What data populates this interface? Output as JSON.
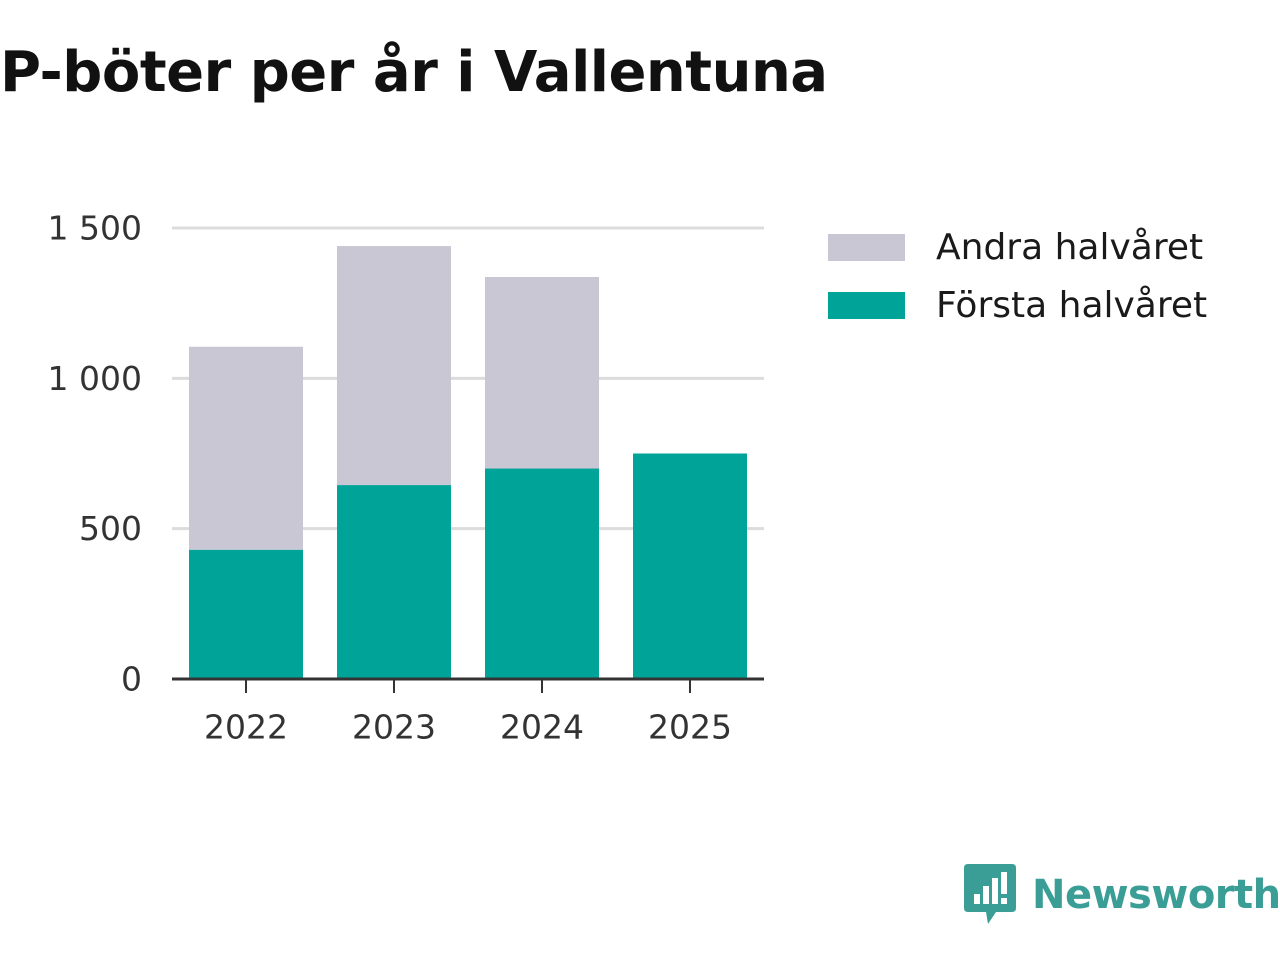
{
  "chart_data": {
    "type": "bar",
    "stacked": true,
    "title": "P-böter per år i Vallentuna",
    "categories": [
      "2022",
      "2023",
      "2024",
      "2025"
    ],
    "series": [
      {
        "name": "Första halvåret",
        "color": "#00a398",
        "values": [
          430,
          645,
          700,
          750
        ]
      },
      {
        "name": "Andra halvåret",
        "color": "#c8c7d3",
        "values": [
          675,
          795,
          637,
          0
        ]
      }
    ],
    "legend_order": [
      "Andra halvåret",
      "Första halvåret"
    ],
    "xlabel": "",
    "ylabel": "",
    "ylim": [
      0,
      1500
    ],
    "yticks": [
      {
        "value": 0,
        "label": "0"
      },
      {
        "value": 500,
        "label": "500"
      },
      {
        "value": 1000,
        "label": "1 000"
      },
      {
        "value": 1500,
        "label": "1 500"
      }
    ],
    "grid": true,
    "legend_position": "top-right"
  },
  "brand": {
    "name": "Newsworthy",
    "color": "#3a9e96",
    "icon": "newsworthy-logo-icon"
  }
}
